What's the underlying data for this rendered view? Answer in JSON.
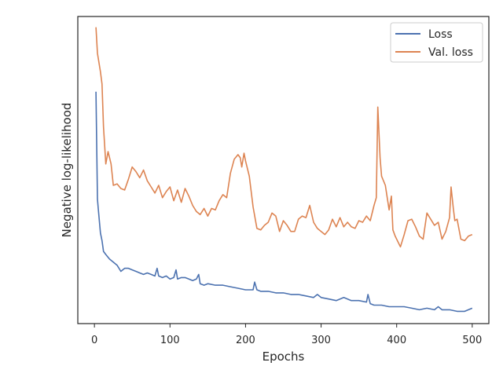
{
  "chart_data": {
    "type": "line",
    "title": "",
    "xlabel": "Epochs",
    "ylabel": "Negative log-likelihood",
    "xlim": [
      -22,
      522
    ],
    "ylim": [
      0,
      100
    ],
    "x_ticks": [
      0,
      100,
      200,
      300,
      400,
      500
    ],
    "y_ticks_labeled": false,
    "grid": false,
    "legend": {
      "placement": "top-right",
      "entries": [
        "Loss",
        "Val. loss"
      ]
    },
    "series": [
      {
        "name": "Loss",
        "color": "#4c72b0",
        "x": [
          2,
          4,
          5,
          8,
          10,
          12,
          15,
          20,
          25,
          30,
          35,
          40,
          45,
          50,
          55,
          60,
          65,
          70,
          75,
          80,
          83,
          85,
          90,
          95,
          100,
          105,
          108,
          110,
          115,
          120,
          125,
          130,
          135,
          138,
          140,
          145,
          150,
          160,
          170,
          180,
          190,
          200,
          210,
          212,
          215,
          220,
          230,
          240,
          250,
          260,
          270,
          280,
          290,
          295,
          300,
          310,
          320,
          330,
          340,
          350,
          360,
          362,
          365,
          370,
          380,
          390,
          400,
          410,
          420,
          430,
          440,
          450,
          455,
          460,
          470,
          480,
          490,
          500
        ],
        "values": [
          75.5,
          40.5,
          37.5,
          29.5,
          27.0,
          23.5,
          22.5,
          21.0,
          20.0,
          19.0,
          17.0,
          18.0,
          18.0,
          17.5,
          17.0,
          16.5,
          16.0,
          16.5,
          16.0,
          15.5,
          18.0,
          15.5,
          15.0,
          15.5,
          14.5,
          15.0,
          17.5,
          14.5,
          15.0,
          15.0,
          14.5,
          14.0,
          14.5,
          16.0,
          13.0,
          12.5,
          13.0,
          12.5,
          12.5,
          12.0,
          11.5,
          11.0,
          11.0,
          13.5,
          11.0,
          10.5,
          10.5,
          10.0,
          10.0,
          9.5,
          9.5,
          9.0,
          8.5,
          9.5,
          8.5,
          8.0,
          7.5,
          8.5,
          7.5,
          7.5,
          7.0,
          9.5,
          6.5,
          6.0,
          6.0,
          5.5,
          5.5,
          5.5,
          5.0,
          4.5,
          5.0,
          4.5,
          5.5,
          4.5,
          4.5,
          4.0,
          4.0,
          5.0
        ]
      },
      {
        "name": "Val. loss",
        "color": "#dd8452",
        "x": [
          2,
          4,
          8,
          10,
          12,
          15,
          18,
          22,
          25,
          30,
          35,
          40,
          45,
          50,
          55,
          60,
          65,
          70,
          75,
          80,
          85,
          90,
          95,
          100,
          105,
          110,
          115,
          120,
          125,
          130,
          135,
          140,
          145,
          150,
          155,
          160,
          165,
          170,
          175,
          180,
          185,
          190,
          193,
          195,
          198,
          200,
          205,
          210,
          215,
          220,
          225,
          230,
          235,
          240,
          245,
          250,
          255,
          260,
          265,
          270,
          275,
          280,
          285,
          290,
          295,
          300,
          305,
          310,
          315,
          320,
          325,
          330,
          335,
          340,
          345,
          350,
          355,
          360,
          365,
          370,
          373,
          375,
          378,
          380,
          385,
          390,
          393,
          395,
          398,
          400,
          405,
          410,
          415,
          420,
          425,
          430,
          435,
          440,
          445,
          450,
          455,
          460,
          465,
          470,
          472,
          475,
          477,
          480,
          485,
          490,
          495,
          500
        ],
        "values": [
          96.5,
          88.0,
          82.0,
          78.0,
          64.0,
          52.0,
          56.0,
          52.0,
          45.0,
          45.5,
          44.0,
          43.5,
          47.0,
          51.0,
          49.5,
          47.5,
          50.0,
          46.5,
          44.5,
          42.5,
          45.0,
          41.0,
          43.0,
          44.5,
          40.0,
          43.5,
          39.5,
          44.0,
          41.5,
          38.5,
          36.5,
          35.5,
          37.5,
          35.0,
          37.5,
          37.0,
          40.0,
          42.0,
          41.0,
          49.0,
          53.5,
          55.0,
          54.0,
          51.0,
          55.5,
          53.0,
          48.0,
          38.0,
          31.0,
          30.5,
          32.0,
          33.0,
          36.0,
          35.0,
          30.0,
          33.5,
          32.0,
          30.0,
          30.0,
          34.0,
          35.0,
          34.5,
          38.5,
          33.0,
          31.0,
          30.0,
          29.0,
          30.5,
          34.0,
          31.5,
          34.5,
          31.5,
          33.0,
          31.5,
          31.0,
          33.5,
          33.0,
          35.0,
          33.5,
          38.5,
          41.0,
          70.5,
          54.0,
          48.0,
          45.0,
          37.0,
          41.5,
          30.5,
          28.5,
          27.5,
          25.0,
          29.0,
          33.5,
          34.0,
          31.5,
          28.5,
          27.5,
          36.0,
          34.0,
          32.0,
          33.0,
          27.5,
          30.0,
          34.5,
          44.5,
          37.5,
          33.5,
          34.0,
          27.5,
          27.0,
          28.5,
          29.0
        ]
      }
    ]
  }
}
